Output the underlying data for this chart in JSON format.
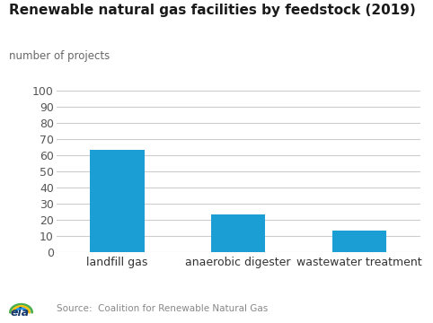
{
  "title": "Renewable natural gas facilities by feedstock (2019)",
  "ylabel": "number of projects",
  "categories": [
    "landfill gas",
    "anaerobic digester",
    "wastewater treatment"
  ],
  "values": [
    63,
    23,
    13
  ],
  "bar_color": "#1a9ed4",
  "ylim": [
    0,
    100
  ],
  "yticks": [
    0,
    10,
    20,
    30,
    40,
    50,
    60,
    70,
    80,
    90,
    100
  ],
  "source_text": "Source:  Coalition for Renewable Natural Gas",
  "title_fontsize": 11,
  "ylabel_fontsize": 8.5,
  "tick_fontsize": 9,
  "xlabel_fontsize": 9,
  "background_color": "#ffffff",
  "grid_color": "#cccccc"
}
